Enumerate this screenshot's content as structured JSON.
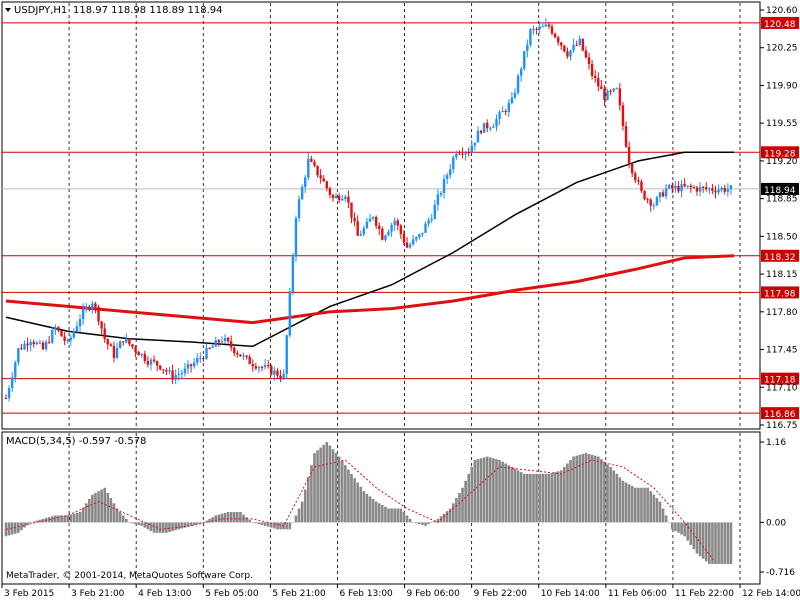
{
  "header": {
    "symbol": "USDJPY,H1",
    "ohlc": "118.97 118.98 118.89 118.94"
  },
  "macd_header": {
    "label": "MACD(5,34,5) -0.597 -0.578"
  },
  "copyright": "MetaTrader, © 2001-2014, MetaQuotes Software Corp.",
  "colors": {
    "background": "#ffffff",
    "bull_candle": "#1e90ff",
    "bear_candle": "#e01010",
    "level_line": "#cc0000",
    "ma_fast": "#000000",
    "ma_slow": "#e01010",
    "macd_hist": "#888888",
    "macd_signal": "#e01010",
    "grid": "#000000",
    "current_price_label_bg": "#000000"
  },
  "chart_data": [
    {
      "type": "candlestick",
      "title": "USDJPY,H1",
      "ylim": [
        116.75,
        120.6
      ],
      "grid": true,
      "y_ticks": [
        "120.60",
        "120.25",
        "119.90",
        "119.55",
        "119.20",
        "118.85",
        "118.50",
        "118.15",
        "117.80",
        "117.45",
        "117.10",
        "116.75"
      ],
      "x_ticks": [
        "3 Feb 2015",
        "3 Feb 21:00",
        "4 Feb 13:00",
        "5 Feb 05:00",
        "5 Feb 21:00",
        "6 Feb 13:00",
        "9 Feb 06:00",
        "9 Feb 22:00",
        "10 Feb 14:00",
        "11 Feb 06:00",
        "11 Feb 22:00",
        "12 Feb 14:00"
      ],
      "horizontal_levels": [
        {
          "value": 120.48,
          "label": "120.48"
        },
        {
          "value": 119.28,
          "label": "119.28"
        },
        {
          "value": 118.32,
          "label": "118.32"
        },
        {
          "value": 117.98,
          "label": "117.98"
        },
        {
          "value": 117.18,
          "label": "117.18"
        },
        {
          "value": 116.86,
          "label": "116.86"
        }
      ],
      "current_price": {
        "value": 118.94,
        "label": "118.94"
      },
      "series": [
        {
          "kind": "close_path",
          "x": [
            0,
            4,
            8,
            12,
            16,
            20,
            24,
            28,
            30,
            32,
            35,
            38,
            42,
            46,
            50,
            54,
            58,
            62,
            66,
            70,
            74,
            78,
            82,
            86,
            90,
            94,
            98,
            102,
            106,
            110,
            114,
            117,
            119,
            122,
            126,
            130,
            134,
            138,
            142,
            146,
            150,
            154,
            158,
            164,
            170,
            176,
            182,
            186,
            190,
            194,
            198,
            202,
            206,
            210,
            214,
            218,
            222,
            226,
            230,
            234
          ],
          "values": [
            117.0,
            117.45,
            117.55,
            117.45,
            117.65,
            117.5,
            117.75,
            117.9,
            117.75,
            117.55,
            117.4,
            117.55,
            117.45,
            117.35,
            117.3,
            117.2,
            117.25,
            117.35,
            117.45,
            117.55,
            117.45,
            117.35,
            117.3,
            117.25,
            117.2,
            118.7,
            119.2,
            119.05,
            118.85,
            118.9,
            118.5,
            118.6,
            118.7,
            118.5,
            118.65,
            118.4,
            118.5,
            118.7,
            119.0,
            119.3,
            119.3,
            119.5,
            119.55,
            119.75,
            120.4,
            120.45,
            120.2,
            120.3,
            120.0,
            119.8,
            119.85,
            119.2,
            118.9,
            118.8,
            118.94,
            118.95,
            118.95,
            118.94,
            118.94,
            118.94
          ]
        },
        {
          "name": "",
          "kind": "ma_fast",
          "x": [
            0,
            20,
            40,
            60,
            80,
            105,
            125,
            145,
            165,
            185,
            205,
            220,
            236
          ],
          "values": [
            117.75,
            117.62,
            117.55,
            117.52,
            117.48,
            117.85,
            118.05,
            118.35,
            118.7,
            119.0,
            119.2,
            119.28,
            119.28
          ]
        },
        {
          "name": "",
          "kind": "ma_slow",
          "x": [
            0,
            20,
            40,
            60,
            80,
            105,
            125,
            145,
            165,
            185,
            205,
            220,
            236
          ],
          "values": [
            117.9,
            117.85,
            117.8,
            117.75,
            117.7,
            117.8,
            117.83,
            117.9,
            118.0,
            118.08,
            118.2,
            118.3,
            118.32
          ]
        }
      ]
    },
    {
      "type": "bar",
      "title": "MACD(5,34,5) -0.597 -0.578",
      "ylim": [
        -0.716,
        1.16
      ],
      "y_ticks": [
        "1.16",
        "0.00",
        "-0.716"
      ],
      "series": [
        {
          "name": "",
          "kind": "histogram",
          "x": [
            0,
            4,
            8,
            12,
            16,
            20,
            24,
            28,
            32,
            36,
            40,
            44,
            48,
            52,
            56,
            60,
            64,
            68,
            72,
            76,
            80,
            84,
            88,
            92,
            96,
            100,
            104,
            108,
            112,
            116,
            120,
            124,
            128,
            132,
            136,
            140,
            144,
            148,
            152,
            156,
            160,
            164,
            168,
            172,
            176,
            180,
            184,
            188,
            192,
            196,
            200,
            204,
            208,
            212,
            216,
            220,
            224,
            228,
            232
          ],
          "values": [
            -0.2,
            -0.15,
            0.0,
            0.05,
            0.1,
            0.1,
            0.15,
            0.4,
            0.5,
            0.2,
            0.0,
            -0.05,
            -0.15,
            -0.15,
            -0.1,
            -0.05,
            0.0,
            0.1,
            0.15,
            0.15,
            0.0,
            -0.05,
            -0.1,
            -0.1,
            0.3,
            1.0,
            1.16,
            0.95,
            0.7,
            0.45,
            0.3,
            0.2,
            0.2,
            0.0,
            -0.05,
            0.05,
            0.2,
            0.5,
            0.9,
            0.95,
            0.9,
            0.8,
            0.7,
            0.7,
            0.7,
            0.75,
            0.95,
            1.0,
            0.95,
            0.8,
            0.6,
            0.5,
            0.5,
            0.3,
            -0.1,
            -0.2,
            -0.45,
            -0.6,
            -0.6
          ]
        },
        {
          "name": "",
          "kind": "signal",
          "x": [
            0,
            10,
            20,
            30,
            40,
            50,
            60,
            70,
            80,
            90,
            100,
            110,
            120,
            130,
            140,
            150,
            160,
            170,
            180,
            190,
            200,
            210,
            220,
            230
          ],
          "values": [
            -0.1,
            0.0,
            0.1,
            0.3,
            0.1,
            -0.1,
            -0.05,
            0.05,
            0.05,
            -0.05,
            0.8,
            0.9,
            0.5,
            0.2,
            0.0,
            0.4,
            0.8,
            0.75,
            0.7,
            0.9,
            0.8,
            0.5,
            0.0,
            -0.58
          ]
        }
      ]
    }
  ]
}
